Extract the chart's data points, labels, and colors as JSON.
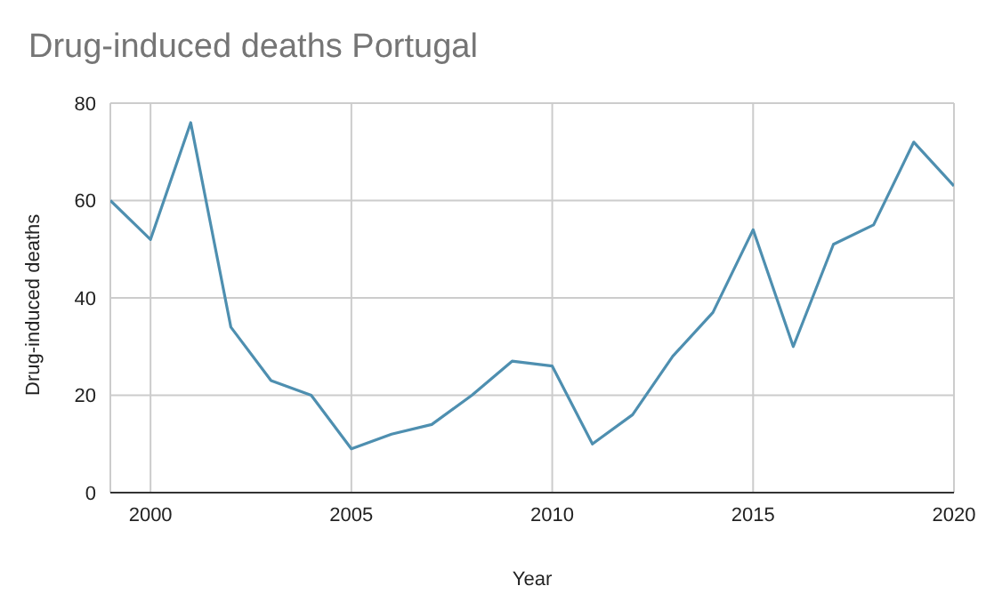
{
  "chart_data": {
    "type": "line",
    "title": "Drug-induced deaths Portugal",
    "xlabel": "Year",
    "ylabel": "Drug-induced deaths",
    "x": [
      1999,
      2000,
      2001,
      2002,
      2003,
      2004,
      2005,
      2006,
      2007,
      2008,
      2009,
      2010,
      2011,
      2012,
      2013,
      2014,
      2015,
      2016,
      2017,
      2018,
      2019,
      2020
    ],
    "series": [
      {
        "color": "#4e8fb0",
        "values": [
          60,
          52,
          76,
          34,
          23,
          20,
          9,
          12,
          14,
          20,
          27,
          26,
          10,
          16,
          28,
          37,
          54,
          30,
          51,
          55,
          72,
          63
        ]
      }
    ],
    "xlim": [
      1999,
      2020
    ],
    "xticks": [
      2000,
      2005,
      2010,
      2015,
      2020
    ],
    "ylim": [
      0,
      80
    ],
    "yticks": [
      0,
      20,
      40,
      60,
      80
    ],
    "grid": true,
    "legend": false,
    "marker": "none",
    "line_style": "solid"
  }
}
